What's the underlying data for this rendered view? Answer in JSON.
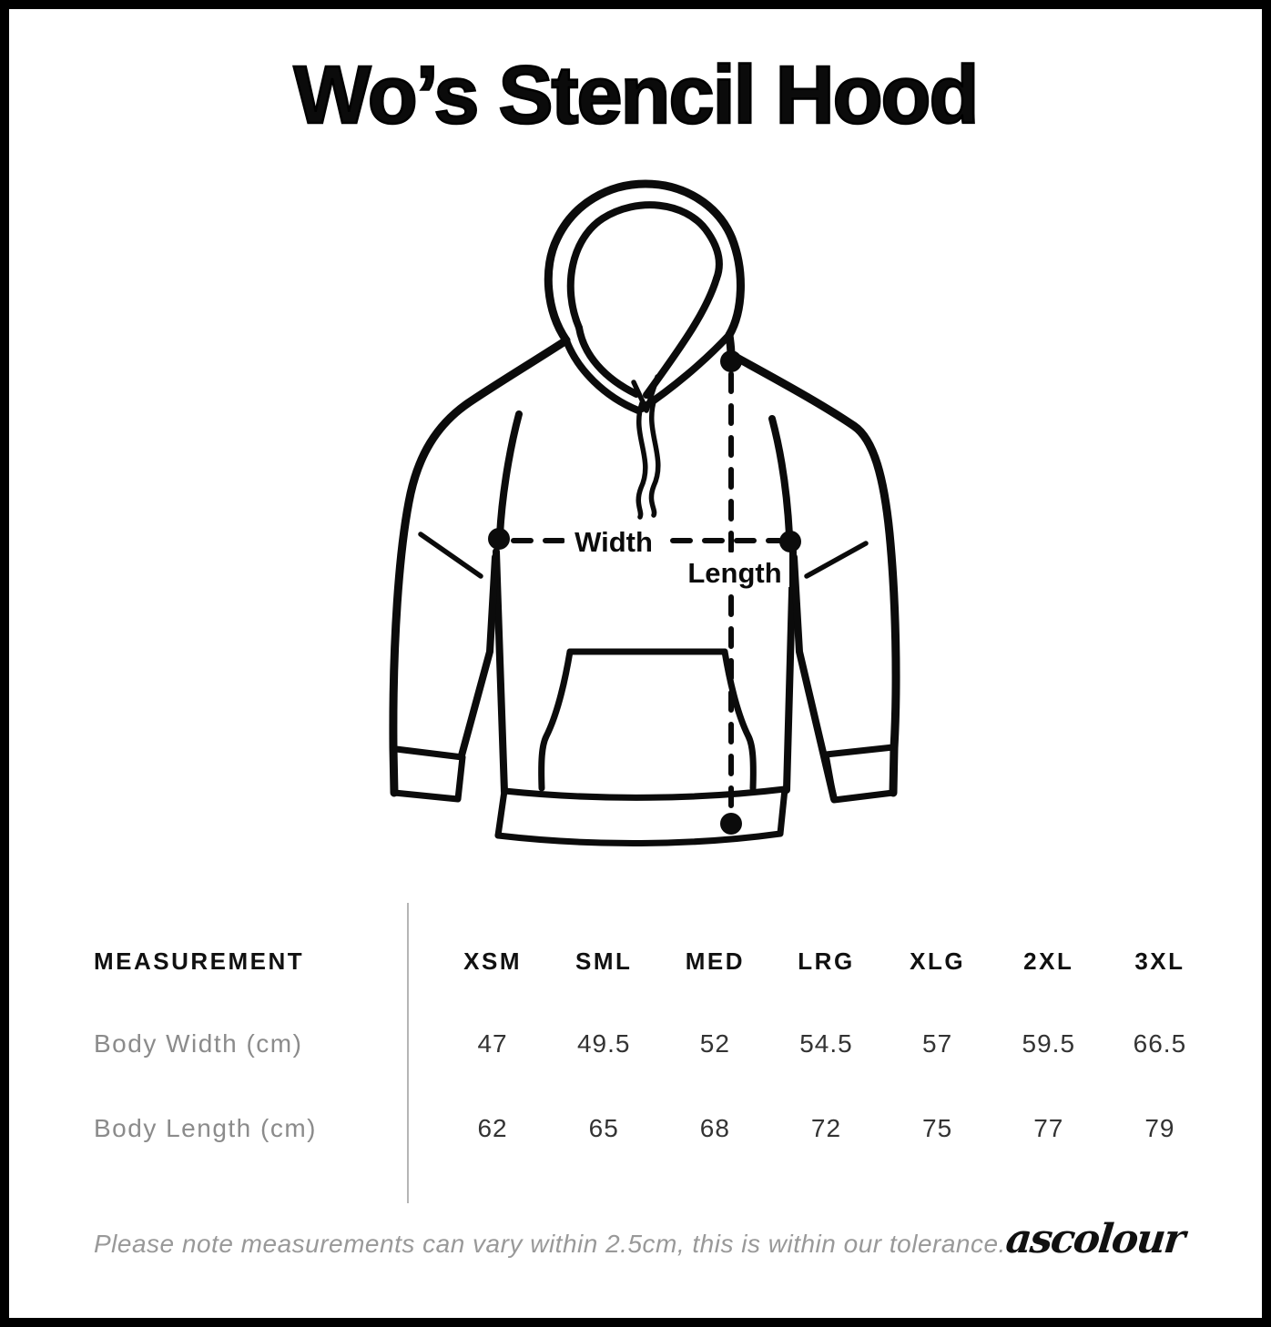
{
  "page": {
    "title": "Wo’s Stencil Hood",
    "background": "#ffffff",
    "border_color": "#000000",
    "line_color": "#0b0b0b",
    "muted_text_color": "#8b8b8b",
    "note_color": "#999999",
    "divider_color": "#b5b5b5"
  },
  "diagram": {
    "width_label": "Width",
    "length_label": "Length"
  },
  "table": {
    "measurement_header": "MEASUREMENT",
    "size_headers": [
      "XSM",
      "SML",
      "MED",
      "LRG",
      "XLG",
      "2XL",
      "3XL"
    ],
    "rows": [
      {
        "label": "Body Width (cm)",
        "values": [
          "47",
          "49.5",
          "52",
          "54.5",
          "57",
          "59.5",
          "66.5"
        ]
      },
      {
        "label": "Body Length (cm)",
        "values": [
          "62",
          "65",
          "68",
          "72",
          "75",
          "77",
          "79"
        ]
      }
    ]
  },
  "footer": {
    "note": "Please note measurements can vary within 2.5cm, this is within our tolerance.",
    "brand": "ascolour"
  }
}
